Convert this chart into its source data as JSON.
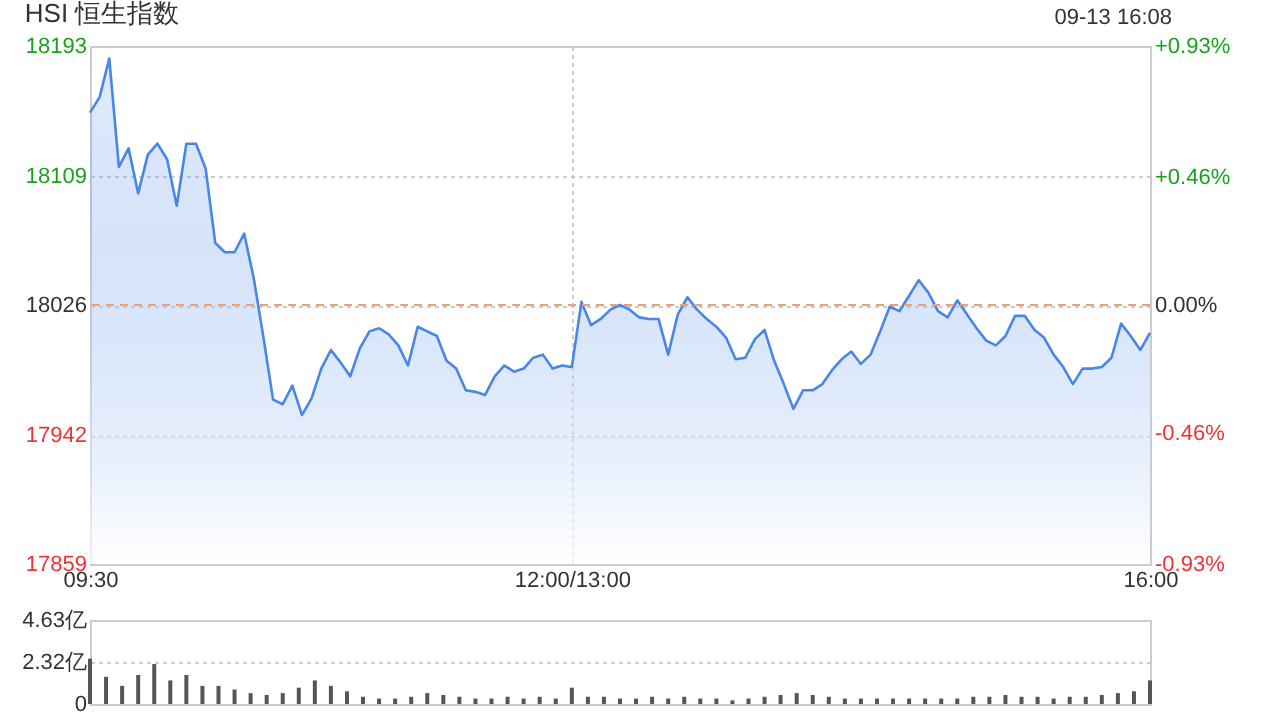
{
  "chart_data": [
    {
      "type": "area",
      "title": "HSI 恒生指数",
      "annotations": [
        "09-13 16:08"
      ],
      "categories": [
        "09:30",
        null,
        null,
        null,
        null,
        null,
        null,
        null,
        null,
        null,
        null,
        null,
        null,
        null,
        null,
        null,
        null,
        null,
        null,
        null,
        null,
        null,
        null,
        null,
        null,
        null,
        null,
        null,
        null,
        null,
        null,
        null,
        null,
        null,
        null,
        null,
        null,
        null,
        null,
        null,
        null,
        null,
        null,
        null,
        null,
        null,
        null,
        null,
        null,
        null,
        "12:00/13:00",
        null,
        null,
        null,
        null,
        null,
        null,
        null,
        null,
        null,
        null,
        null,
        null,
        null,
        null,
        null,
        null,
        null,
        null,
        null,
        null,
        null,
        null,
        null,
        null,
        null,
        null,
        null,
        null,
        null,
        null,
        null,
        null,
        null,
        null,
        null,
        null,
        null,
        null,
        null,
        null,
        null,
        null,
        null,
        null,
        null,
        null,
        null,
        null,
        null,
        null,
        null,
        null,
        null,
        null,
        null,
        null,
        null,
        null,
        null,
        "16:00"
      ],
      "series": [
        {
          "color": "#4a86e8",
          "values": [
            18150,
            18160,
            18185,
            18115,
            18127,
            18098,
            18123,
            18130,
            18120,
            18090,
            18130,
            18130,
            18114,
            18066,
            18060,
            18060,
            18072,
            18043,
            18005,
            17965,
            17962,
            17974,
            17955,
            17966,
            17985,
            17997,
            17989,
            17980,
            17998,
            18009,
            18011,
            18007,
            18000,
            17987,
            18012,
            18009,
            18006,
            17990,
            17985,
            17971,
            17970,
            17968,
            17980,
            17987,
            17983,
            17985,
            17992,
            17994,
            17985,
            17987,
            17986,
            18028,
            18013,
            18017,
            18023,
            18026,
            18023,
            18018,
            18017,
            18017,
            17994,
            18020,
            18031,
            18023,
            18017,
            18012,
            18005,
            17991,
            17992,
            18004,
            18010,
            17990,
            17975,
            17959,
            17971,
            17971,
            17975,
            17984,
            17991,
            17996,
            17988,
            17994,
            18009,
            18025,
            18022,
            18032,
            18042,
            18034,
            18022,
            18018,
            18029,
            18020,
            18011,
            18003,
            18000,
            18006,
            18019,
            18019,
            18010,
            18005,
            17994,
            17986,
            17975,
            17985,
            17985,
            17986,
            17992,
            18014,
            18006,
            17997,
            18008
          ]
        }
      ],
      "ylim": [
        17859,
        18193
      ],
      "yticks": [
        17859,
        17942,
        18026,
        18109,
        18193
      ],
      "y2lim": [
        -0.93,
        0.93
      ],
      "y2ticks": [
        {
          "value": -0.93,
          "label": "-0.93%"
        },
        {
          "value": -0.46,
          "label": "-0.46%"
        },
        {
          "value": 0,
          "label": "0.00%"
        },
        {
          "value": 0.46,
          "label": "+0.46%"
        },
        {
          "value": 0.93,
          "label": "+0.93%"
        }
      ],
      "ref_lines": [
        {
          "axis": "y",
          "value": 18026,
          "color": "#f0a070",
          "line_style": "dashed"
        }
      ],
      "grid": true
    },
    {
      "type": "bar",
      "categories": [
        null,
        null,
        null,
        null,
        null,
        null,
        null,
        null,
        null,
        null,
        null,
        null,
        null,
        null,
        null,
        null,
        null,
        null,
        null,
        null,
        null,
        null,
        null,
        null,
        null,
        null,
        null,
        null,
        null,
        null,
        null,
        null,
        null,
        null,
        null,
        null,
        null,
        null,
        null,
        null,
        null,
        null,
        null,
        null,
        null,
        null,
        null,
        null,
        null,
        null,
        null,
        null,
        null,
        null,
        null,
        null,
        null,
        null,
        null,
        null,
        null,
        null,
        null,
        null,
        null,
        null,
        null
      ],
      "values": [
        2.5,
        1.5,
        1.0,
        1.6,
        2.2,
        1.3,
        1.6,
        1.0,
        1.0,
        0.8,
        0.6,
        0.5,
        0.6,
        0.9,
        1.3,
        1.0,
        0.7,
        0.4,
        0.3,
        0.3,
        0.4,
        0.6,
        0.5,
        0.4,
        0.3,
        0.3,
        0.4,
        0.3,
        0.4,
        0.3,
        0.9,
        0.4,
        0.4,
        0.3,
        0.3,
        0.4,
        0.3,
        0.4,
        0.3,
        0.3,
        0.2,
        0.3,
        0.4,
        0.5,
        0.6,
        0.5,
        0.4,
        0.3,
        0.3,
        0.3,
        0.3,
        0.3,
        0.3,
        0.3,
        0.3,
        0.4,
        0.4,
        0.5,
        0.4,
        0.4,
        0.3,
        0.4,
        0.4,
        0.5,
        0.6,
        0.7,
        1.3
      ],
      "color": "#555555",
      "ylim": [
        0,
        4.63
      ],
      "yticks": [
        0,
        {
          "value": 2.32,
          "label": "2.32亿"
        },
        {
          "value": 4.63,
          "label": "4.63亿"
        }
      ],
      "grid": "y",
      "tick_labels": "y"
    }
  ]
}
